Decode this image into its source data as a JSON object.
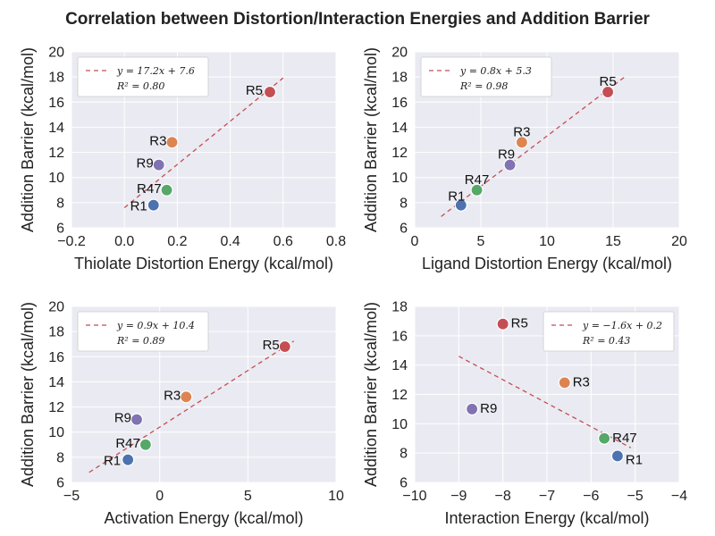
{
  "title": "Correlation between Distortion/Interaction Energies and Addition Barrier",
  "colors": {
    "panel_bg": "#EAEAF2",
    "grid": "#FFFFFF",
    "fit_line": "#C44E52",
    "points": {
      "R1": "#4C72B0",
      "R3": "#DD8452",
      "R5": "#C44E52",
      "R9": "#8172B2",
      "R47": "#55A868"
    }
  },
  "chart_data": [
    {
      "type": "scatter",
      "xlabel": "Thiolate Distortion Energy (kcal/mol)",
      "ylabel": "Addition Barrier (kcal/mol)",
      "xlim": [
        -0.2,
        0.8
      ],
      "ylim": [
        6,
        20
      ],
      "xticks": [
        -0.2,
        0.0,
        0.2,
        0.4,
        0.6,
        0.8
      ],
      "xtick_labels": [
        "−0.2",
        "0.0",
        "0.2",
        "0.4",
        "0.6",
        "0.8"
      ],
      "yticks": [
        6,
        8,
        10,
        12,
        14,
        16,
        18,
        20
      ],
      "ytick_labels": [
        "6",
        "8",
        "10",
        "12",
        "14",
        "16",
        "18",
        "20"
      ],
      "grid": true,
      "legend_position": "top-left",
      "points": [
        {
          "label": "R1",
          "x": 0.11,
          "y": 7.8
        },
        {
          "label": "R3",
          "x": 0.18,
          "y": 12.8
        },
        {
          "label": "R5",
          "x": 0.55,
          "y": 16.8
        },
        {
          "label": "R9",
          "x": 0.13,
          "y": 11.0
        },
        {
          "label": "R47",
          "x": 0.16,
          "y": 9.0
        }
      ],
      "fit": {
        "slope": 17.2,
        "intercept": 7.6,
        "x_range": [
          0.0,
          0.6
        ],
        "equation": "y = 17.2x + 7.6",
        "r2_label": "R² = 0.80"
      }
    },
    {
      "type": "scatter",
      "xlabel": "Ligand Distortion Energy (kcal/mol)",
      "ylabel": "Addition Barrier (kcal/mol)",
      "xlim": [
        0,
        20
      ],
      "ylim": [
        6,
        20
      ],
      "xticks": [
        0,
        5,
        10,
        15,
        20
      ],
      "xtick_labels": [
        "0",
        "5",
        "10",
        "15",
        "20"
      ],
      "yticks": [
        6,
        8,
        10,
        12,
        14,
        16,
        18,
        20
      ],
      "ytick_labels": [
        "6",
        "8",
        "10",
        "12",
        "14",
        "16",
        "18",
        "20"
      ],
      "grid": true,
      "legend_position": "top-left",
      "points": [
        {
          "label": "R1",
          "x": 3.5,
          "y": 7.8
        },
        {
          "label": "R3",
          "x": 8.1,
          "y": 12.8
        },
        {
          "label": "R5",
          "x": 14.6,
          "y": 16.8
        },
        {
          "label": "R9",
          "x": 7.2,
          "y": 11.0
        },
        {
          "label": "R47",
          "x": 4.7,
          "y": 9.0
        }
      ],
      "fit": {
        "slope": 0.8,
        "intercept": 5.3,
        "x_range": [
          2.0,
          16.0
        ],
        "equation": "y = 0.8x + 5.3",
        "r2_label": "R² = 0.98"
      }
    },
    {
      "type": "scatter",
      "xlabel": "Activation Energy (kcal/mol)",
      "ylabel": "Addition Barrier (kcal/mol)",
      "xlim": [
        -5,
        10
      ],
      "ylim": [
        6,
        20
      ],
      "xticks": [
        -5,
        0,
        5,
        10
      ],
      "xtick_labels": [
        "−5",
        "0",
        "5",
        "10"
      ],
      "yticks": [
        6,
        8,
        10,
        12,
        14,
        16,
        18,
        20
      ],
      "ytick_labels": [
        "6",
        "8",
        "10",
        "12",
        "14",
        "16",
        "18",
        "20"
      ],
      "grid": true,
      "legend_position": "top-left",
      "points": [
        {
          "label": "R1",
          "x": -1.8,
          "y": 7.8
        },
        {
          "label": "R3",
          "x": 1.5,
          "y": 12.8
        },
        {
          "label": "R5",
          "x": 7.1,
          "y": 16.8
        },
        {
          "label": "R9",
          "x": -1.3,
          "y": 11.0
        },
        {
          "label": "R47",
          "x": -0.8,
          "y": 9.0
        }
      ],
      "fit": {
        "slope": 0.9,
        "intercept": 10.4,
        "x_range": [
          -4.0,
          7.6
        ],
        "equation": "y = 0.9x + 10.4",
        "r2_label": "R² = 0.89"
      }
    },
    {
      "type": "scatter",
      "xlabel": "Interaction Energy (kcal/mol)",
      "ylabel": "Addition Barrier (kcal/mol)",
      "xlim": [
        -10,
        -4
      ],
      "ylim": [
        6,
        18
      ],
      "xticks": [
        -10,
        -9,
        -8,
        -7,
        -6,
        -5,
        -4
      ],
      "xtick_labels": [
        "−10",
        "−9",
        "−8",
        "−7",
        "−6",
        "−5",
        "−4"
      ],
      "yticks": [
        6,
        8,
        10,
        12,
        14,
        16,
        18
      ],
      "ytick_labels": [
        "6",
        "8",
        "10",
        "12",
        "14",
        "16",
        "18"
      ],
      "grid": true,
      "legend_position": "top-right",
      "points": [
        {
          "label": "R1",
          "x": -5.4,
          "y": 7.8
        },
        {
          "label": "R3",
          "x": -6.6,
          "y": 12.8
        },
        {
          "label": "R5",
          "x": -8.0,
          "y": 16.8
        },
        {
          "label": "R9",
          "x": -8.7,
          "y": 11.0
        },
        {
          "label": "R47",
          "x": -5.7,
          "y": 9.0
        }
      ],
      "fit": {
        "slope": -1.6,
        "intercept": 0.2,
        "x_range": [
          -9.0,
          -5.1
        ],
        "equation": "y = −1.6x + 0.2",
        "r2_label": "R² = 0.43"
      }
    }
  ]
}
